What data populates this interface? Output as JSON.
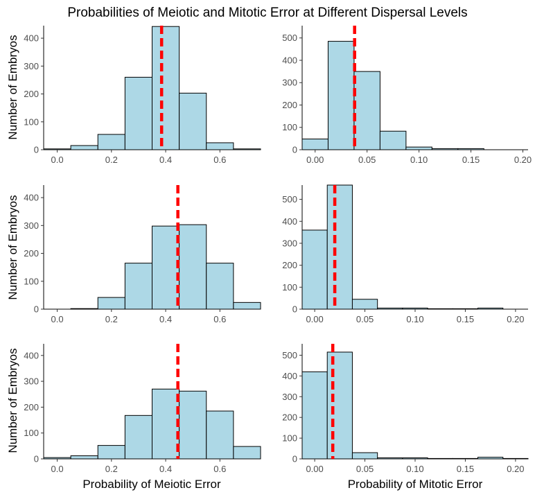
{
  "figure": {
    "title": "Probabilities of Meiotic and Mitotic Error at Different Dispersal Levels",
    "ylabel": "Number of Embryos",
    "xlabel_left": "Probability of Meiotic Error",
    "xlabel_right": "Probability of Mitotic Error"
  },
  "colors": {
    "bar_fill": "#add8e6",
    "bar_stroke": "#000000",
    "mean_line": "#ff0000"
  },
  "chart_data": [
    {
      "type": "bar",
      "panel": "row-1-meiotic",
      "bin_edges": [
        -0.05,
        0.05,
        0.15,
        0.25,
        0.35,
        0.45,
        0.55,
        0.65,
        0.75
      ],
      "values": [
        3,
        15,
        55,
        260,
        442,
        203,
        25,
        3
      ],
      "mean_line": 0.385,
      "xlim": [
        -0.05,
        0.75
      ],
      "ylim": [
        0,
        445
      ],
      "xticks": [
        0.0,
        0.2,
        0.4,
        0.6
      ],
      "xtick_labels": [
        "0.0",
        "0.2",
        "0.4",
        "0.6"
      ],
      "yticks": [
        0,
        100,
        200,
        300,
        400
      ],
      "ytick_labels": [
        "0",
        "100",
        "200",
        "300",
        "400"
      ],
      "grid": false
    },
    {
      "type": "bar",
      "panel": "row-1-mitotic",
      "bin_edges": [
        -0.0125,
        0.0125,
        0.0375,
        0.0625,
        0.0875,
        0.1125,
        0.1375,
        0.1625,
        0.1875,
        0.2125
      ],
      "values": [
        48,
        485,
        350,
        83,
        12,
        5,
        5,
        0,
        0
      ],
      "mean_line": 0.038,
      "xlim": [
        -0.0125,
        0.205
      ],
      "ylim": [
        0,
        555
      ],
      "xticks": [
        0.0,
        0.05,
        0.1,
        0.15,
        0.2
      ],
      "xtick_labels": [
        "0.00",
        "0.05",
        "0.10",
        "0.15",
        "0.20"
      ],
      "yticks": [
        0,
        100,
        200,
        300,
        400,
        500
      ],
      "ytick_labels": [
        "0",
        "100",
        "200",
        "300",
        "400",
        "500"
      ],
      "grid": false
    },
    {
      "type": "bar",
      "panel": "row-2-meiotic",
      "bin_edges": [
        -0.05,
        0.05,
        0.15,
        0.25,
        0.35,
        0.45,
        0.55,
        0.65,
        0.75
      ],
      "values": [
        0,
        2,
        42,
        165,
        298,
        303,
        165,
        24
      ],
      "mean_line": 0.445,
      "xlim": [
        -0.05,
        0.75
      ],
      "ylim": [
        0,
        445
      ],
      "xticks": [
        0.0,
        0.2,
        0.4,
        0.6
      ],
      "xtick_labels": [
        "0.0",
        "0.2",
        "0.4",
        "0.6"
      ],
      "yticks": [
        0,
        100,
        200,
        300,
        400
      ],
      "ytick_labels": [
        "0",
        "100",
        "200",
        "300",
        "400"
      ],
      "grid": false
    },
    {
      "type": "bar",
      "panel": "row-2-mitotic",
      "bin_edges": [
        -0.0125,
        0.0125,
        0.0375,
        0.0625,
        0.0875,
        0.1125,
        0.1375,
        0.1625,
        0.1875,
        0.2125
      ],
      "values": [
        360,
        565,
        45,
        5,
        5,
        2,
        2,
        5,
        0
      ],
      "mean_line": 0.02,
      "xlim": [
        -0.0125,
        0.2125
      ],
      "ylim": [
        0,
        565
      ],
      "xticks": [
        0.0,
        0.05,
        0.1,
        0.15,
        0.2
      ],
      "xtick_labels": [
        "0.00",
        "0.05",
        "0.10",
        "0.15",
        "0.20"
      ],
      "yticks": [
        0,
        100,
        200,
        300,
        400,
        500
      ],
      "ytick_labels": [
        "0",
        "100",
        "200",
        "300",
        "400",
        "500"
      ],
      "grid": false
    },
    {
      "type": "bar",
      "panel": "row-3-meiotic",
      "bin_edges": [
        -0.05,
        0.05,
        0.15,
        0.25,
        0.35,
        0.45,
        0.55,
        0.65,
        0.75
      ],
      "values": [
        5,
        12,
        52,
        168,
        270,
        262,
        185,
        48
      ],
      "mean_line": 0.445,
      "xlim": [
        -0.05,
        0.75
      ],
      "ylim": [
        0,
        445
      ],
      "xticks": [
        0.0,
        0.2,
        0.4,
        0.6
      ],
      "xtick_labels": [
        "0.0",
        "0.2",
        "0.4",
        "0.6"
      ],
      "yticks": [
        0,
        100,
        200,
        300,
        400
      ],
      "ytick_labels": [
        "0",
        "100",
        "200",
        "300",
        "400"
      ],
      "grid": false
    },
    {
      "type": "bar",
      "panel": "row-3-mitotic",
      "bin_edges": [
        -0.0125,
        0.0125,
        0.0375,
        0.0625,
        0.0875,
        0.1125,
        0.1375,
        0.1625,
        0.1875,
        0.2125
      ],
      "values": [
        420,
        515,
        30,
        5,
        5,
        2,
        2,
        8,
        2
      ],
      "mean_line": 0.018,
      "xlim": [
        -0.0125,
        0.2125
      ],
      "ylim": [
        0,
        555
      ],
      "xticks": [
        0.0,
        0.05,
        0.1,
        0.15,
        0.2
      ],
      "xtick_labels": [
        "0.00",
        "0.05",
        "0.10",
        "0.15",
        "0.20"
      ],
      "yticks": [
        0,
        100,
        200,
        300,
        400,
        500
      ],
      "ytick_labels": [
        "0",
        "100",
        "200",
        "300",
        "400",
        "500"
      ],
      "grid": false
    }
  ]
}
